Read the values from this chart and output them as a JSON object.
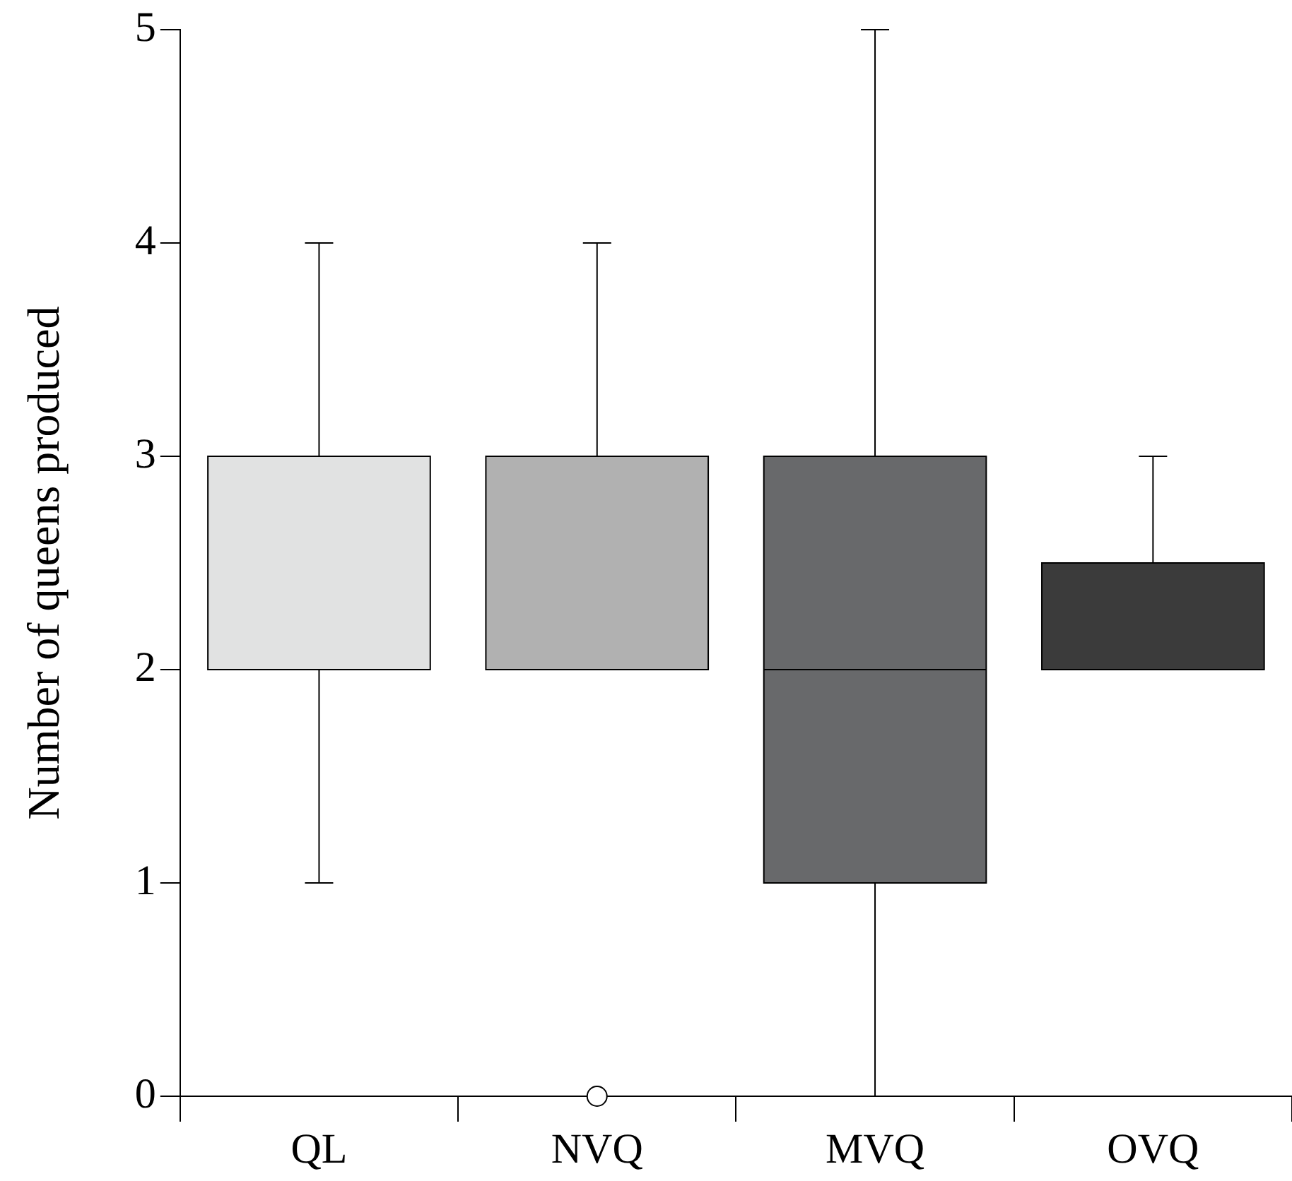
{
  "chart_data": {
    "type": "box",
    "ylabel": "Number of queens produced",
    "categories": [
      "QL",
      "NVQ",
      "MVQ",
      "OVQ"
    ],
    "colors": [
      "#e1e2e2",
      "#b1b1b1",
      "#68696b",
      "#3b3b3b"
    ],
    "boxes": [
      {
        "low": 1,
        "q1": 2,
        "median": 2,
        "q3": 3,
        "high": 4
      },
      {
        "low": 2,
        "q1": 2,
        "median": 2,
        "q3": 3,
        "high": 4,
        "outliers": [
          0
        ]
      },
      {
        "low": 0,
        "q1": 1,
        "median": 2,
        "q3": 3,
        "high": 5
      },
      {
        "low": 2,
        "q1": 2,
        "median": 2,
        "q3": 2.5,
        "high": 3
      }
    ],
    "ylim": [
      0,
      5
    ],
    "yticks": [
      0,
      1,
      2,
      3,
      4,
      5
    ],
    "grid": false,
    "legend": false
  }
}
